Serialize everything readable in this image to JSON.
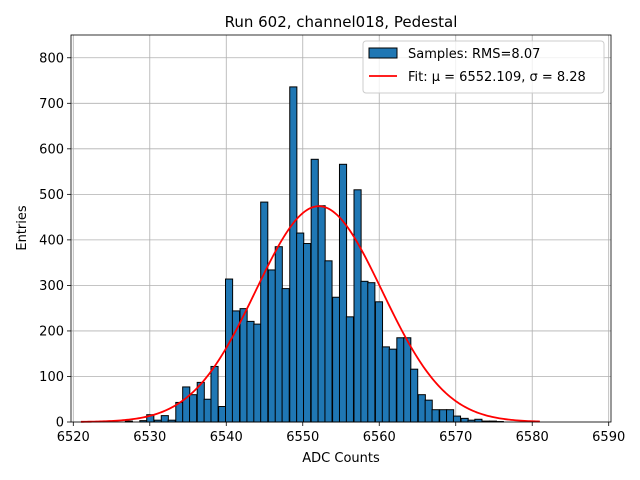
{
  "chart_data": {
    "type": "bar",
    "title": "Run 602, channel018, Pedestal",
    "xlabel": "ADC Counts",
    "ylabel": "Entries",
    "xlim": [
      6519.7,
      6590.3
    ],
    "ylim": [
      0,
      850
    ],
    "xticks": [
      6520,
      6530,
      6540,
      6550,
      6560,
      6570,
      6580,
      6590
    ],
    "yticks": [
      0,
      100,
      200,
      300,
      400,
      500,
      600,
      700,
      800
    ],
    "grid": true,
    "legend_position": "top-right",
    "bar_color": "#1f77b4",
    "fit_color": "#ff0000",
    "series": [
      {
        "name": "Samples: RMS=8.07",
        "kind": "histogram",
        "bins": [
          {
            "x": 6526.8,
            "y": 2
          },
          {
            "x": 6527.8,
            "y": 0
          },
          {
            "x": 6528.7,
            "y": 3
          },
          {
            "x": 6529.6,
            "y": 16
          },
          {
            "x": 6530.6,
            "y": 4
          },
          {
            "x": 6531.5,
            "y": 14
          },
          {
            "x": 6532.4,
            "y": 4
          },
          {
            "x": 6533.4,
            "y": 43
          },
          {
            "x": 6534.3,
            "y": 77
          },
          {
            "x": 6535.2,
            "y": 60
          },
          {
            "x": 6536.2,
            "y": 87
          },
          {
            "x": 6537.1,
            "y": 50
          },
          {
            "x": 6538.0,
            "y": 122
          },
          {
            "x": 6539.0,
            "y": 34
          },
          {
            "x": 6539.9,
            "y": 314
          },
          {
            "x": 6540.8,
            "y": 244
          },
          {
            "x": 6541.8,
            "y": 249
          },
          {
            "x": 6542.7,
            "y": 221
          },
          {
            "x": 6543.6,
            "y": 215
          },
          {
            "x": 6544.5,
            "y": 483
          },
          {
            "x": 6545.5,
            "y": 334
          },
          {
            "x": 6546.4,
            "y": 385
          },
          {
            "x": 6547.3,
            "y": 293
          },
          {
            "x": 6548.3,
            "y": 736
          },
          {
            "x": 6549.2,
            "y": 415
          },
          {
            "x": 6550.1,
            "y": 392
          },
          {
            "x": 6551.1,
            "y": 577
          },
          {
            "x": 6552.0,
            "y": 475
          },
          {
            "x": 6552.9,
            "y": 354
          },
          {
            "x": 6553.9,
            "y": 274
          },
          {
            "x": 6554.8,
            "y": 566
          },
          {
            "x": 6555.7,
            "y": 231
          },
          {
            "x": 6556.7,
            "y": 510
          },
          {
            "x": 6557.6,
            "y": 309
          },
          {
            "x": 6558.5,
            "y": 306
          },
          {
            "x": 6559.5,
            "y": 264
          },
          {
            "x": 6560.4,
            "y": 165
          },
          {
            "x": 6561.3,
            "y": 160
          },
          {
            "x": 6562.3,
            "y": 185
          },
          {
            "x": 6563.2,
            "y": 185
          },
          {
            "x": 6564.1,
            "y": 116
          },
          {
            "x": 6565.1,
            "y": 60
          },
          {
            "x": 6566.0,
            "y": 48
          },
          {
            "x": 6566.9,
            "y": 27
          },
          {
            "x": 6567.9,
            "y": 27
          },
          {
            "x": 6568.8,
            "y": 27
          },
          {
            "x": 6569.7,
            "y": 13
          },
          {
            "x": 6570.7,
            "y": 8
          },
          {
            "x": 6571.6,
            "y": 4
          },
          {
            "x": 6572.5,
            "y": 6
          },
          {
            "x": 6573.5,
            "y": 2
          },
          {
            "x": 6574.4,
            "y": 2
          },
          {
            "x": 6575.3,
            "y": 1
          }
        ],
        "bin_width": 0.93
      },
      {
        "name": "Fit: μ = 6552.109, σ = 8.28",
        "kind": "gaussian_fit",
        "mu": 6552.109,
        "sigma": 8.28,
        "amplitude": 474,
        "x_range": [
          6521,
          6581
        ]
      }
    ]
  }
}
